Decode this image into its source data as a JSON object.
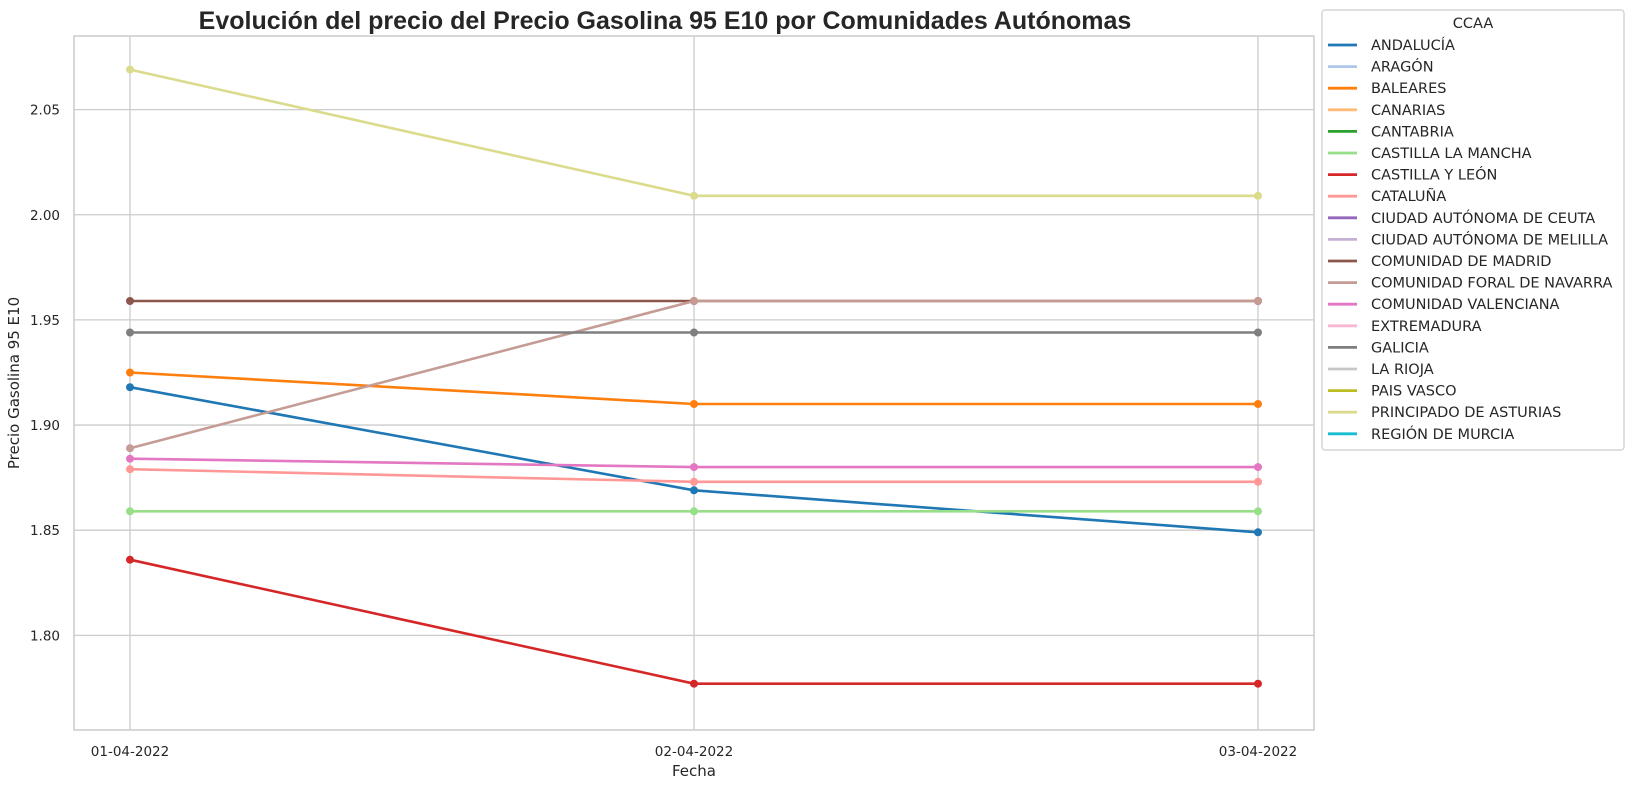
{
  "chart_data": {
    "type": "line",
    "title": "Evolución del precio del Precio Gasolina 95 E10 por Comunidades Autónomas",
    "xlabel": "Fecha",
    "ylabel": "Precio Gasolina 95 E10",
    "categories": [
      "01-04-2022",
      "02-04-2022",
      "03-04-2022"
    ],
    "yticks": [
      "1.80",
      "1.85",
      "1.90",
      "1.95",
      "2.00",
      "2.05"
    ],
    "ylim": [
      1.755,
      2.085
    ],
    "grid": true,
    "legend": {
      "title": "CCAA",
      "placement": "outside-right",
      "entries": [
        {
          "label": "ANDALUCÍA",
          "color": "#1f77b4"
        },
        {
          "label": "ARAGÓN",
          "color": "#aec7e8"
        },
        {
          "label": "BALEARES",
          "color": "#ff7f0e"
        },
        {
          "label": "CANARIAS",
          "color": "#ffbb78"
        },
        {
          "label": "CANTABRIA",
          "color": "#2ca02c"
        },
        {
          "label": "CASTILLA LA MANCHA",
          "color": "#98df8a"
        },
        {
          "label": "CASTILLA Y LEÓN",
          "color": "#d62728"
        },
        {
          "label": "CATALUÑA",
          "color": "#ff9896"
        },
        {
          "label": "CIUDAD AUTÓNOMA DE CEUTA",
          "color": "#9467bd"
        },
        {
          "label": "CIUDAD AUTÓNOMA DE MELILLA",
          "color": "#c5b0d5"
        },
        {
          "label": "COMUNIDAD DE MADRID",
          "color": "#8c564b"
        },
        {
          "label": "COMUNIDAD FORAL DE NAVARRA",
          "color": "#c49c94"
        },
        {
          "label": "COMUNIDAD VALENCIANA",
          "color": "#e377c2"
        },
        {
          "label": "EXTREMADURA",
          "color": "#f7b6d2"
        },
        {
          "label": "GALICIA",
          "color": "#7f7f7f"
        },
        {
          "label": "LA RIOJA",
          "color": "#c7c7c7"
        },
        {
          "label": "PAIS VASCO",
          "color": "#bcbd22"
        },
        {
          "label": "PRINCIPADO DE ASTURIAS",
          "color": "#dbdb8d"
        },
        {
          "label": "REGIÓN DE MURCIA",
          "color": "#17becf"
        }
      ]
    },
    "series": [
      {
        "name": "ANDALUCÍA",
        "color": "#1f77b4",
        "values": [
          1.918,
          1.869,
          1.849
        ]
      },
      {
        "name": "BALEARES",
        "color": "#ff7f0e",
        "values": [
          1.925,
          1.91,
          1.91
        ]
      },
      {
        "name": "CASTILLA LA MANCHA",
        "color": "#98df8a",
        "values": [
          1.859,
          1.859,
          1.859
        ]
      },
      {
        "name": "CASTILLA Y LEÓN",
        "color": "#d62728",
        "values": [
          1.836,
          1.777,
          1.777
        ]
      },
      {
        "name": "CATALUÑA",
        "color": "#ff9896",
        "values": [
          1.879,
          1.873,
          1.873
        ]
      },
      {
        "name": "COMUNIDAD DE MADRID",
        "color": "#8c564b",
        "values": [
          1.959,
          1.959,
          1.959
        ]
      },
      {
        "name": "COMUNIDAD FORAL DE NAVARRA",
        "color": "#c49c94",
        "values": [
          1.889,
          1.959,
          1.959
        ]
      },
      {
        "name": "COMUNIDAD VALENCIANA",
        "color": "#e377c2",
        "values": [
          1.884,
          1.88,
          1.88
        ]
      },
      {
        "name": "GALICIA",
        "color": "#7f7f7f",
        "values": [
          1.944,
          1.944,
          1.944
        ]
      },
      {
        "name": "PRINCIPADO DE ASTURIAS",
        "color": "#dbdb8d",
        "values": [
          2.069,
          2.009,
          2.009
        ]
      }
    ]
  }
}
